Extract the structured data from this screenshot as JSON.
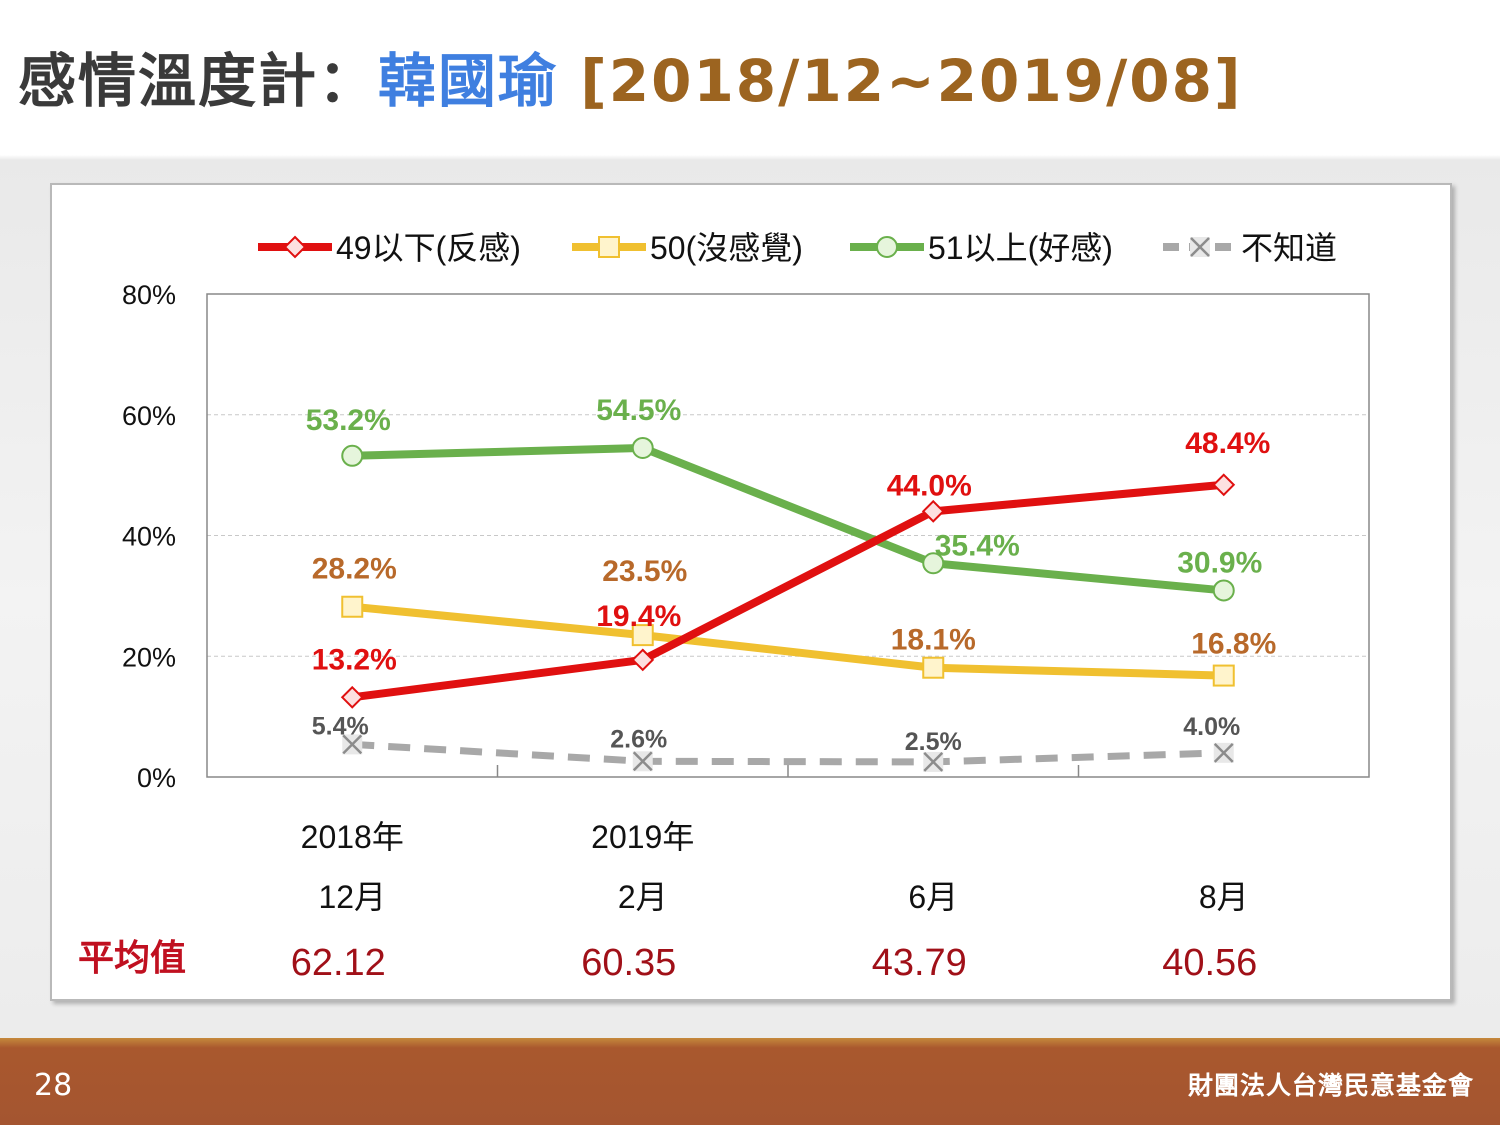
{
  "title": {
    "prefix": "感情溫度計：",
    "name": "韓國瑜",
    "range": "[2018/12~2019/08]"
  },
  "footer": {
    "page": "28",
    "org": "財團法人台灣民意基金會"
  },
  "chart_data": {
    "type": "line",
    "categories": [
      "2018年 12月",
      "2019年 2月",
      "6月",
      "8月"
    ],
    "x_labels_top": [
      "2018年",
      "2019年",
      "",
      ""
    ],
    "x_labels_bottom": [
      "12月",
      "2月",
      "6月",
      "8月"
    ],
    "ylim": [
      0,
      80
    ],
    "yticks": [
      "0%",
      "20%",
      "40%",
      "60%",
      "80%"
    ],
    "ytick_values": [
      0,
      20,
      40,
      60,
      80
    ],
    "grid": true,
    "legend_position": "top",
    "series": [
      {
        "name": "49以下(反感)",
        "values": [
          13.2,
          19.4,
          44.0,
          48.4
        ],
        "labels": [
          "13.2%",
          "19.4%",
          "44.0%",
          "48.4%"
        ],
        "color": "#e01010",
        "label_color": "#e01010",
        "marker": "diamond",
        "dash": false
      },
      {
        "name": "50(沒感覺)",
        "values": [
          28.2,
          23.5,
          18.1,
          16.8
        ],
        "labels": [
          "28.2%",
          "23.5%",
          "18.1%",
          "16.8%"
        ],
        "color": "#f0c030",
        "label_color": "#b8692a",
        "marker": "square",
        "dash": false
      },
      {
        "name": "51以上(好感)",
        "values": [
          53.2,
          54.5,
          35.4,
          30.9
        ],
        "labels": [
          "53.2%",
          "54.5%",
          "35.4%",
          "30.9%"
        ],
        "color": "#6ab04c",
        "label_color": "#6ab04c",
        "marker": "circle",
        "dash": false
      },
      {
        "name": "不知道",
        "values": [
          5.4,
          2.6,
          2.5,
          4.0
        ],
        "labels": [
          "5.4%",
          "2.6%",
          "2.5%",
          "4.0%"
        ],
        "color": "#a8a8a8",
        "label_color": "#555555",
        "marker": "x",
        "dash": true
      }
    ],
    "average": {
      "label": "平均值",
      "values": [
        "62.12",
        "60.35",
        "43.79",
        "40.56"
      ]
    }
  }
}
